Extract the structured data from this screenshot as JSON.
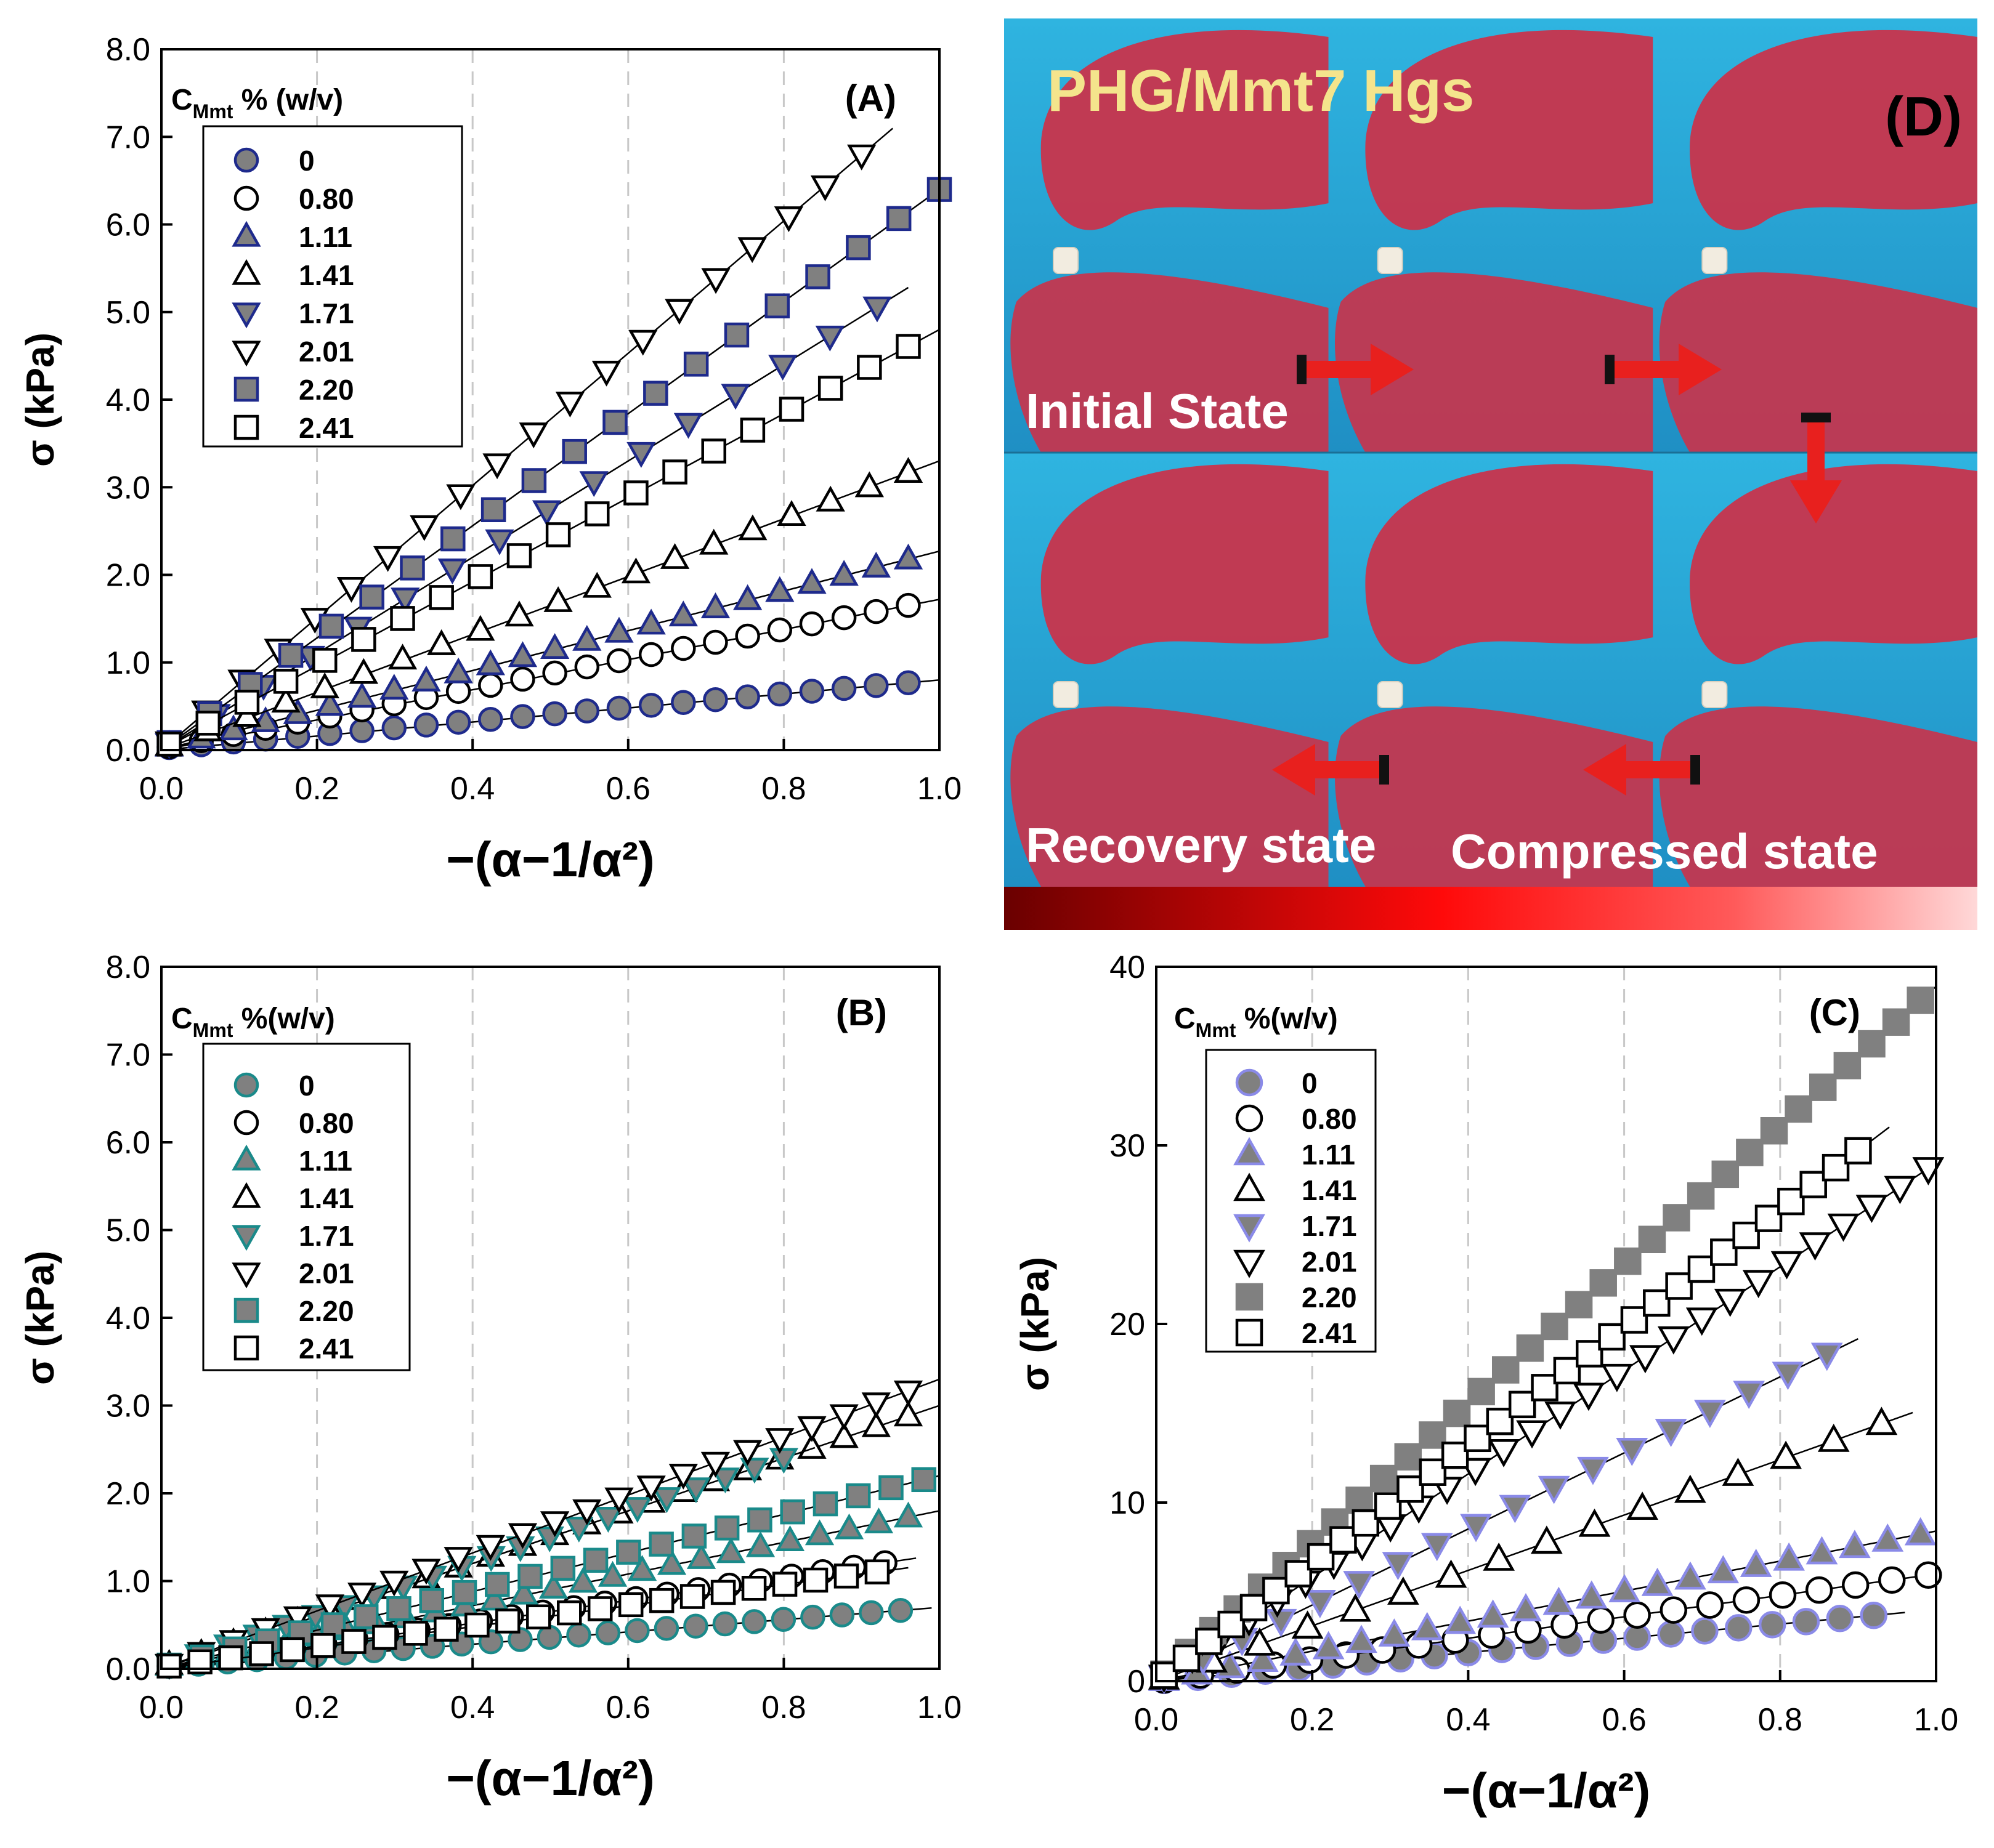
{
  "chart_data": [
    {
      "id": "A",
      "type": "scatter",
      "panel_label": "(A)",
      "xlabel": "−(α−1/α²)",
      "ylabel": "σ (kPa)",
      "xlim": [
        0,
        1
      ],
      "ylim": [
        0,
        8
      ],
      "xticks": [
        "0.0",
        "0.2",
        "0.4",
        "0.6",
        "0.8",
        "1.0"
      ],
      "yticks": [
        "0.0",
        "1.0",
        "2.0",
        "3.0",
        "4.0",
        "5.0",
        "6.0",
        "7.0",
        "8.0"
      ],
      "grid_x": true,
      "legend_title": "C",
      "legend_title_sub": "Mmt",
      "legend_title_suffix": " % (w/v)",
      "legend_position": "top-left",
      "series": [
        {
          "name": "0",
          "marker": "circle",
          "fill": "#808080",
          "stroke": "#1e2a8c",
          "slope": 0.8,
          "xmax": 0.96,
          "n": 24
        },
        {
          "name": "0.80",
          "marker": "circle",
          "fill": "#ffffff",
          "stroke": "#000000",
          "slope": 1.72,
          "xmax": 0.96,
          "n": 24
        },
        {
          "name": "1.11",
          "marker": "triangle",
          "fill": "#808080",
          "stroke": "#1e2a8c",
          "slope": 2.27,
          "xmax": 0.96,
          "n": 24
        },
        {
          "name": "1.41",
          "marker": "triangle",
          "fill": "#ffffff",
          "stroke": "#000000",
          "slope": 3.3,
          "xmax": 0.96,
          "n": 20
        },
        {
          "name": "1.71",
          "marker": "triangle-down",
          "fill": "#808080",
          "stroke": "#1e2a8c",
          "slope": 5.5,
          "xmax": 0.92,
          "n": 16
        },
        {
          "name": "2.01",
          "marker": "triangle-down",
          "fill": "#ffffff",
          "stroke": "#000000",
          "slope": 7.55,
          "xmax": 0.9,
          "n": 20
        },
        {
          "name": "2.20",
          "marker": "square",
          "fill": "#808080",
          "stroke": "#1e2a8c",
          "slope": 6.4,
          "xmax": 1.0,
          "n": 20
        },
        {
          "name": "2.41",
          "marker": "square",
          "fill": "#ffffff",
          "stroke": "#000000",
          "slope": 4.8,
          "xmax": 0.96,
          "n": 20
        }
      ]
    },
    {
      "id": "B",
      "type": "scatter",
      "panel_label": "(B)",
      "xlabel": "−(α−1/α²)",
      "ylabel": "σ (kPa)",
      "xlim": [
        0,
        1
      ],
      "ylim": [
        0,
        8
      ],
      "xticks": [
        "0.0",
        "0.2",
        "0.4",
        "0.6",
        "0.8",
        "1.0"
      ],
      "yticks": [
        "0.0",
        "1.0",
        "2.0",
        "3.0",
        "4.0",
        "5.0",
        "6.0",
        "7.0",
        "8.0"
      ],
      "grid_x": true,
      "legend_title": "C",
      "legend_title_sub": "Mmt",
      "legend_title_suffix": " %(w/v)",
      "legend_position": "top-left",
      "series": [
        {
          "name": "0",
          "marker": "circle",
          "fill": "#808080",
          "stroke": "#1a8a8a",
          "slope": 0.7,
          "xmax": 0.95,
          "n": 26
        },
        {
          "name": "0.80",
          "marker": "circle",
          "fill": "#ffffff",
          "stroke": "#000000",
          "slope": 1.3,
          "xmax": 0.93,
          "n": 24
        },
        {
          "name": "1.11",
          "marker": "triangle",
          "fill": "#808080",
          "stroke": "#1a8a8a",
          "slope": 1.8,
          "xmax": 0.96,
          "n": 26
        },
        {
          "name": "1.41",
          "marker": "triangle",
          "fill": "#ffffff",
          "stroke": "#000000",
          "slope": 3.0,
          "xmax": 0.96,
          "n": 24
        },
        {
          "name": "1.71",
          "marker": "triangle-down",
          "fill": "#808080",
          "stroke": "#1a8a8a",
          "slope": 3.0,
          "xmax": 0.8,
          "n": 22
        },
        {
          "name": "2.01",
          "marker": "triangle-down",
          "fill": "#ffffff",
          "stroke": "#000000",
          "slope": 3.3,
          "xmax": 0.96,
          "n": 24
        },
        {
          "name": "2.20",
          "marker": "square",
          "fill": "#808080",
          "stroke": "#1a8a8a",
          "slope": 2.2,
          "xmax": 0.98,
          "n": 24
        },
        {
          "name": "2.41",
          "marker": "square",
          "fill": "#ffffff",
          "stroke": "#000000",
          "slope": 1.2,
          "xmax": 0.92,
          "n": 24
        }
      ]
    },
    {
      "id": "C",
      "type": "scatter",
      "panel_label": "(C)",
      "xlabel": "−(α−1/α²)",
      "ylabel": "σ (kPa)",
      "xlim": [
        0,
        1
      ],
      "ylim": [
        0,
        40
      ],
      "xticks": [
        "0.0",
        "0.2",
        "0.4",
        "0.6",
        "0.8",
        "1.0"
      ],
      "yticks": [
        "0",
        "10",
        "20",
        "30",
        "40"
      ],
      "grid_x": true,
      "legend_title": "C",
      "legend_title_sub": "Mmt",
      "legend_title_suffix": " %(w/v)",
      "legend_position": "top-left",
      "series": [
        {
          "name": "0",
          "marker": "circle",
          "fill": "#808080",
          "stroke": "#8a8ae8",
          "slope": 4.0,
          "xmax": 0.92,
          "n": 22
        },
        {
          "name": "0.80",
          "marker": "circle",
          "fill": "#ffffff",
          "stroke": "#000000",
          "slope": 6.0,
          "xmax": 0.99,
          "n": 22
        },
        {
          "name": "1.11",
          "marker": "triangle",
          "fill": "#808080",
          "stroke": "#8a8ae8",
          "slope": 8.4,
          "xmax": 0.98,
          "n": 24
        },
        {
          "name": "1.41",
          "marker": "triangle",
          "fill": "#ffffff",
          "stroke": "#000000",
          "slope": 15.5,
          "xmax": 0.93,
          "n": 16
        },
        {
          "name": "1.71",
          "marker": "triangle-down",
          "fill": "#808080",
          "stroke": "#8a8ae8",
          "slope": 21.3,
          "xmax": 0.86,
          "n": 18
        },
        {
          "name": "2.01",
          "marker": "triangle-down",
          "fill": "#ffffff",
          "stroke": "#000000",
          "slope": 29.0,
          "xmax": 0.99,
          "n": 28
        },
        {
          "name": "2.20",
          "marker": "square",
          "fill": "#808080",
          "stroke": "#808080",
          "slope": 38.9,
          "xmax": 0.98,
          "n": 32
        },
        {
          "name": "2.41",
          "marker": "square",
          "fill": "#ffffff",
          "stroke": "#000000",
          "slope": 33.0,
          "xmax": 0.9,
          "n": 32
        }
      ]
    }
  ],
  "photo": {
    "title": "PHG/Mmt7 Hgs",
    "panel_label": "(D)",
    "captions": {
      "initial": "Initial State",
      "recovery": "Recovery state",
      "compressed": "Compressed state"
    },
    "colors": {
      "water": "#2aa8d8",
      "glove": "#c8344c",
      "arrow": "#e8201e",
      "title": "#f4e48c"
    }
  }
}
